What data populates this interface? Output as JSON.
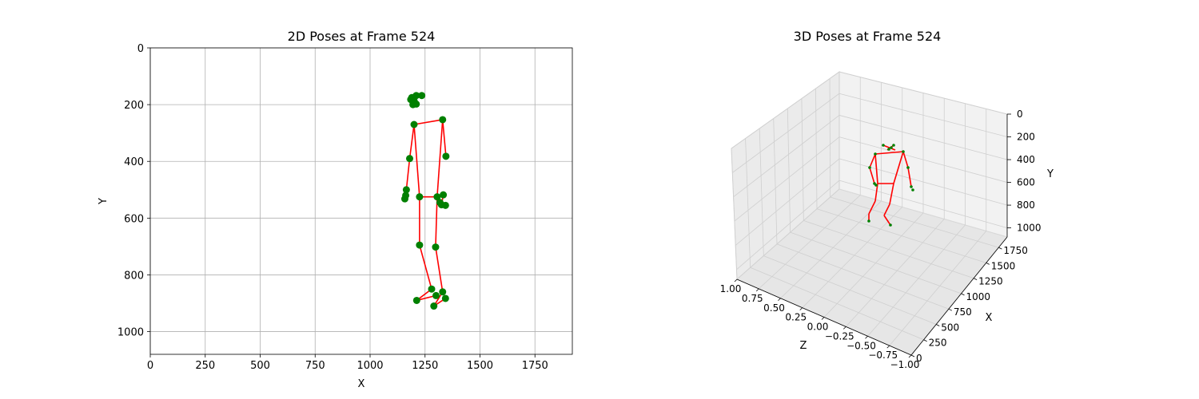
{
  "chart_data": [
    {
      "type": "scatter",
      "title": "2D Poses at Frame 524",
      "xlabel": "X",
      "ylabel": "Y",
      "xlim": [
        0,
        1920
      ],
      "ylim": [
        1080,
        0
      ],
      "xticks": [
        0,
        250,
        500,
        750,
        1000,
        1250,
        1500,
        1750
      ],
      "yticks": [
        0,
        200,
        400,
        600,
        800,
        1000
      ],
      "grid": true,
      "joint_color": "#008000",
      "bone_color": "#ff0000",
      "joints": [
        {
          "x": 1190,
          "y": 175
        },
        {
          "x": 1210,
          "y": 168
        },
        {
          "x": 1235,
          "y": 168
        },
        {
          "x": 1185,
          "y": 182
        },
        {
          "x": 1200,
          "y": 186
        },
        {
          "x": 1195,
          "y": 200
        },
        {
          "x": 1210,
          "y": 198
        },
        {
          "x": 1200,
          "y": 270
        },
        {
          "x": 1330,
          "y": 253
        },
        {
          "x": 1180,
          "y": 390
        },
        {
          "x": 1345,
          "y": 382
        },
        {
          "x": 1165,
          "y": 500
        },
        {
          "x": 1162,
          "y": 520
        },
        {
          "x": 1158,
          "y": 532
        },
        {
          "x": 1225,
          "y": 525
        },
        {
          "x": 1305,
          "y": 525
        },
        {
          "x": 1333,
          "y": 518
        },
        {
          "x": 1318,
          "y": 545
        },
        {
          "x": 1325,
          "y": 553
        },
        {
          "x": 1343,
          "y": 555
        },
        {
          "x": 1225,
          "y": 695
        },
        {
          "x": 1298,
          "y": 702
        },
        {
          "x": 1280,
          "y": 850
        },
        {
          "x": 1300,
          "y": 873
        },
        {
          "x": 1330,
          "y": 860
        },
        {
          "x": 1343,
          "y": 883
        },
        {
          "x": 1212,
          "y": 890
        },
        {
          "x": 1290,
          "y": 910
        }
      ],
      "bones": [
        [
          [
            1210,
            168
          ],
          [
            1235,
            168
          ]
        ],
        [
          [
            1190,
            175
          ],
          [
            1210,
            168
          ]
        ],
        [
          [
            1200,
            186
          ],
          [
            1210,
            198
          ]
        ],
        [
          [
            1200,
            270
          ],
          [
            1330,
            253
          ]
        ],
        [
          [
            1200,
            270
          ],
          [
            1180,
            390
          ]
        ],
        [
          [
            1180,
            390
          ],
          [
            1165,
            500
          ]
        ],
        [
          [
            1330,
            253
          ],
          [
            1345,
            382
          ]
        ],
        [
          [
            1200,
            270
          ],
          [
            1225,
            525
          ]
        ],
        [
          [
            1330,
            253
          ],
          [
            1305,
            525
          ]
        ],
        [
          [
            1225,
            525
          ],
          [
            1305,
            525
          ]
        ],
        [
          [
            1305,
            525
          ],
          [
            1318,
            545
          ]
        ],
        [
          [
            1333,
            518
          ],
          [
            1325,
            553
          ]
        ],
        [
          [
            1225,
            525
          ],
          [
            1225,
            695
          ]
        ],
        [
          [
            1305,
            525
          ],
          [
            1298,
            702
          ]
        ],
        [
          [
            1225,
            695
          ],
          [
            1280,
            850
          ]
        ],
        [
          [
            1298,
            702
          ],
          [
            1330,
            860
          ]
        ],
        [
          [
            1280,
            850
          ],
          [
            1212,
            890
          ]
        ],
        [
          [
            1212,
            890
          ],
          [
            1300,
            873
          ]
        ],
        [
          [
            1330,
            860
          ],
          [
            1290,
            910
          ]
        ],
        [
          [
            1290,
            910
          ],
          [
            1343,
            883
          ]
        ]
      ]
    },
    {
      "type": "scatter",
      "title": "3D Poses at Frame 524",
      "xlabel": "X",
      "ylabel": "Y",
      "zlabel": "Z",
      "xlim": [
        0,
        1920
      ],
      "ylim": [
        1080,
        0
      ],
      "zlim": [
        1.0,
        -1.0
      ],
      "xticks": [
        0,
        250,
        500,
        750,
        1000,
        1250,
        1500,
        1750
      ],
      "yticks": [
        0,
        200,
        400,
        600,
        800,
        1000
      ],
      "zticks": [
        "1.00",
        "0.75",
        "0.50",
        "0.25",
        "0.00",
        "−0.25",
        "−0.50",
        "−0.75",
        "−1.00"
      ],
      "grid": true,
      "joint_color": "#008000",
      "bone_color": "#ff0000"
    }
  ]
}
